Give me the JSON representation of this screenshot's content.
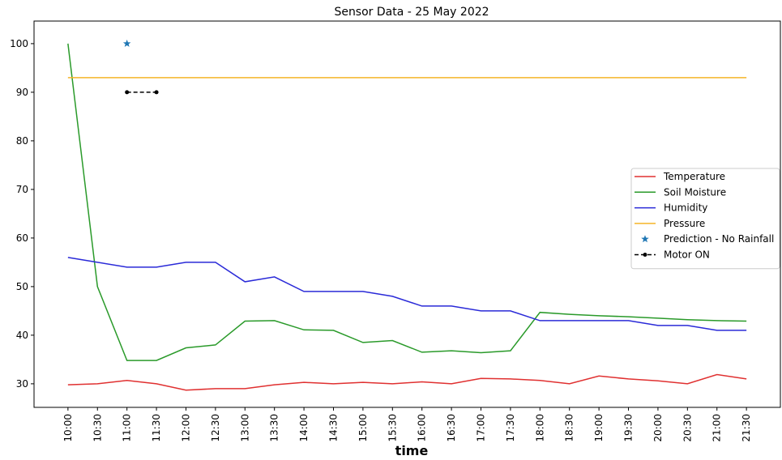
{
  "chart_data": {
    "type": "line",
    "title": "Sensor Data - 25 May 2022",
    "x_label": "time",
    "categories": [
      "10:00",
      "10:30",
      "11:00",
      "11:30",
      "12:00",
      "12:30",
      "13:00",
      "13:30",
      "14:00",
      "14:30",
      "15:00",
      "15:30",
      "16:00",
      "16:30",
      "17:00",
      "17:30",
      "18:00",
      "18:30",
      "19:00",
      "19:30",
      "20:00",
      "20:30",
      "21:00",
      "21:30"
    ],
    "series": [
      {
        "name": "Temperature",
        "color": "#e03030",
        "values": [
          29.8,
          30.0,
          30.7,
          30.0,
          28.7,
          29.0,
          29.0,
          29.8,
          30.3,
          30.0,
          30.3,
          30.0,
          30.4,
          30.0,
          31.1,
          31.0,
          30.7,
          30.0,
          31.6,
          31.0,
          30.6,
          30.0,
          31.9,
          31.0
        ]
      },
      {
        "name": "Soil Moisture",
        "color": "#2a9a2a",
        "values": [
          100,
          50,
          34.8,
          34.8,
          37.4,
          38.0,
          42.9,
          43.0,
          41.1,
          41.0,
          38.5,
          38.9,
          36.5,
          36.8,
          36.4,
          36.8,
          44.7,
          44.3,
          44.0,
          43.8,
          43.5,
          43.2,
          43.0,
          42.9
        ]
      },
      {
        "name": "Humidity",
        "color": "#2a2ad8",
        "values": [
          56,
          55,
          54,
          54,
          55,
          55,
          51,
          52,
          49,
          49,
          49,
          48,
          46,
          46,
          45,
          45,
          43,
          43,
          43,
          43,
          42,
          42,
          41,
          41
        ]
      },
      {
        "name": "Pressure",
        "color": "#f5b428",
        "values": [
          93,
          93,
          93,
          93,
          93,
          93,
          93,
          93,
          93,
          93,
          93,
          93,
          93,
          93,
          93,
          93,
          93,
          93,
          93,
          93,
          93,
          93,
          93,
          93
        ]
      },
      {
        "name": "Prediction - No Rainfall",
        "color": "#1f77b4",
        "marker": "star",
        "line": false,
        "values": [
          null,
          null,
          100,
          null,
          null,
          null,
          null,
          null,
          null,
          null,
          null,
          null,
          null,
          null,
          null,
          null,
          null,
          null,
          null,
          null,
          null,
          null,
          null,
          null
        ]
      },
      {
        "name": "Motor ON",
        "color": "#000000",
        "marker": "dot",
        "dashed": true,
        "values": [
          null,
          null,
          90,
          90,
          null,
          null,
          null,
          null,
          null,
          null,
          null,
          null,
          null,
          null,
          null,
          null,
          null,
          null,
          null,
          null,
          null,
          null,
          null,
          null
        ]
      }
    ],
    "ylim": [
      25.15,
      104.65
    ],
    "yticks": [
      30,
      40,
      50,
      60,
      70,
      80,
      90,
      100
    ],
    "grid": false,
    "legend": "right"
  }
}
